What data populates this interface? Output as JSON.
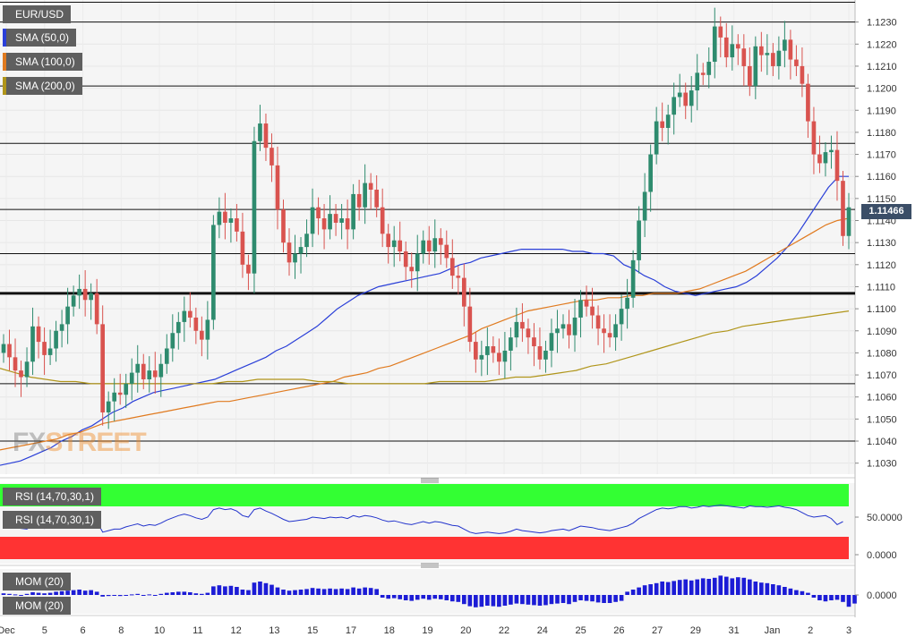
{
  "instrument": "EUR/USD",
  "price_tag": "1.11466",
  "watermark": {
    "part1": "FX",
    "part2": "STREET"
  },
  "indicators": {
    "sma50": {
      "label": "SMA (50,0)",
      "color": "#2a3fd8"
    },
    "sma100": {
      "label": "SMA (100,0)",
      "color": "#e07a1f"
    },
    "sma200": {
      "label": "SMA (200,0)",
      "color": "#b0951a"
    }
  },
  "rsi": {
    "label_top": "RSI (14,70,30,1)",
    "label_inner": "RSI (14,70,30,1)",
    "ticks": [
      "50.0000",
      "0.0000"
    ],
    "overbought_color": "#33ff33",
    "oversold_color": "#ff3333"
  },
  "mom": {
    "label_top": "MOM (20)",
    "label_inner": "MOM (20)",
    "ticks": [
      "0.0000"
    ],
    "color": "#1c1cd6"
  },
  "chart_data": {
    "type": "candlestick",
    "price_ylim": [
      1.1025,
      1.124
    ],
    "price_ticks": [
      "1.1030",
      "1.1040",
      "1.1050",
      "1.1060",
      "1.1070",
      "1.1080",
      "1.1090",
      "1.1100",
      "1.1110",
      "1.1120",
      "1.1130",
      "1.1140",
      "1.1150",
      "1.1160",
      "1.1170",
      "1.1180",
      "1.1190",
      "1.1200",
      "1.1210",
      "1.1220",
      "1.1230"
    ],
    "x_labels": [
      "Dec",
      "5",
      "6",
      "8",
      "10",
      "11",
      "12",
      "13",
      "15",
      "17",
      "18",
      "19",
      "20",
      "22",
      "24",
      "25",
      "26",
      "27",
      "29",
      "31",
      "Jan",
      "2",
      "3"
    ],
    "horizontal_levels": [
      1.1239,
      1.123,
      1.1201,
      1.1175,
      1.1145,
      1.1125,
      1.1107,
      1.1066,
      1.104
    ],
    "closes": [
      1.1084,
      1.1078,
      1.1072,
      1.1069,
      1.1076,
      1.1092,
      1.1085,
      1.1079,
      1.1082,
      1.109,
      1.1093,
      1.1101,
      1.1106,
      1.1109,
      1.1104,
      1.1107,
      1.1093,
      1.1053,
      1.1058,
      1.1062,
      1.1061,
      1.1066,
      1.1071,
      1.1075,
      1.1068,
      1.1072,
      1.1069,
      1.1075,
      1.1082,
      1.1089,
      1.1094,
      1.1099,
      1.1096,
      1.109,
      1.1086,
      1.1095,
      1.1138,
      1.1144,
      1.1139,
      1.1141,
      1.1135,
      1.112,
      1.1116,
      1.1176,
      1.1184,
      1.1173,
      1.1165,
      1.1145,
      1.113,
      1.1121,
      1.1125,
      1.1128,
      1.1134,
      1.1146,
      1.1141,
      1.1136,
      1.1143,
      1.1139,
      1.1141,
      1.1136,
      1.1152,
      1.1146,
      1.1157,
      1.1154,
      1.1146,
      1.1134,
      1.1128,
      1.1131,
      1.1126,
      1.1119,
      1.1117,
      1.1125,
      1.1131,
      1.1126,
      1.1132,
      1.1129,
      1.1123,
      1.1115,
      1.1114,
      1.1101,
      1.1085,
      1.1077,
      1.1079,
      1.1083,
      1.108,
      1.1076,
      1.1081,
      1.1087,
      1.1094,
      1.1091,
      1.1087,
      1.1083,
      1.1077,
      1.1081,
      1.1089,
      1.1091,
      1.1093,
      1.1088,
      1.1096,
      1.1104,
      1.1101,
      1.1097,
      1.1091,
      1.1089,
      1.1087,
      1.1093,
      1.11,
      1.1105,
      1.1122,
      1.114,
      1.1153,
      1.117,
      1.1185,
      1.1182,
      1.1188,
      1.1196,
      1.1198,
      1.1192,
      1.1199,
      1.1207,
      1.1206,
      1.1212,
      1.1228,
      1.1223,
      1.1214,
      1.122,
      1.1218,
      1.121,
      1.1201,
      1.1219,
      1.1215,
      1.1216,
      1.121,
      1.1217,
      1.1222,
      1.1213,
      1.121,
      1.1202,
      1.1185,
      1.117,
      1.1166,
      1.1171,
      1.1172,
      1.1158,
      1.1133,
      1.1146
    ],
    "sma50": [
      1.1029,
      1.103,
      1.1031,
      1.1033,
      1.1035,
      1.1037,
      1.104,
      1.1042,
      1.1045,
      1.1047,
      1.105,
      1.1053,
      1.1055,
      1.1058,
      1.106,
      1.1062,
      1.1063,
      1.1064,
      1.1065,
      1.1066,
      1.1067,
      1.1068,
      1.107,
      1.1072,
      1.1074,
      1.1076,
      1.1078,
      1.1081,
      1.1083,
      1.1086,
      1.1089,
      1.1092,
      1.1096,
      1.11,
      1.1103,
      1.1106,
      1.1108,
      1.111,
      1.1111,
      1.1112,
      1.1113,
      1.1114,
      1.1115,
      1.1116,
      1.1118,
      1.112,
      1.1121,
      1.1123,
      1.1124,
      1.1125,
      1.1126,
      1.1127,
      1.1127,
      1.1127,
      1.1127,
      1.1127,
      1.1126,
      1.1126,
      1.1125,
      1.1125,
      1.1124,
      1.112,
      1.1118,
      1.1115,
      1.1113,
      1.111,
      1.1108,
      1.1107,
      1.1106,
      1.1107,
      1.1108,
      1.1109,
      1.111,
      1.1112,
      1.1115,
      1.1119,
      1.1123,
      1.1128,
      1.1134,
      1.1141,
      1.1148,
      1.1155,
      1.116,
      1.116
    ],
    "sma100": [
      1.1036,
      1.1037,
      1.1038,
      1.1039,
      1.104,
      1.1041,
      1.1043,
      1.1044,
      1.1046,
      1.1048,
      1.1049,
      1.105,
      1.1051,
      1.1052,
      1.1053,
      1.1054,
      1.1055,
      1.1056,
      1.1057,
      1.1058,
      1.1058,
      1.1059,
      1.106,
      1.1061,
      1.1062,
      1.1063,
      1.1064,
      1.1065,
      1.1066,
      1.1067,
      1.1069,
      1.107,
      1.1071,
      1.1073,
      1.1074,
      1.1076,
      1.1078,
      1.108,
      1.1082,
      1.1084,
      1.1086,
      1.1088,
      1.1091,
      1.1093,
      1.1095,
      1.1097,
      1.1099,
      1.11,
      1.1101,
      1.1102,
      1.1103,
      1.1104,
      1.1104,
      1.1105,
      1.1105,
      1.1106,
      1.1106,
      1.1107,
      1.1107,
      1.1107,
      1.1108,
      1.1109,
      1.1111,
      1.1113,
      1.1115,
      1.1117,
      1.112,
      1.1123,
      1.1126,
      1.1129,
      1.1132,
      1.1135,
      1.1138,
      1.114,
      1.1141
    ],
    "sma200": [
      1.1073,
      1.1071,
      1.1069,
      1.1068,
      1.1067,
      1.1067,
      1.1066,
      1.1066,
      1.1066,
      1.1066,
      1.1066,
      1.1066,
      1.1066,
      1.1066,
      1.1066,
      1.1067,
      1.1067,
      1.1068,
      1.1068,
      1.1068,
      1.1068,
      1.1067,
      1.1067,
      1.1066,
      1.1066,
      1.1066,
      1.1066,
      1.1066,
      1.1066,
      1.1067,
      1.1067,
      1.1067,
      1.1067,
      1.1068,
      1.1069,
      1.1069,
      1.107,
      1.1071,
      1.1072,
      1.1074,
      1.1075,
      1.1077,
      1.1079,
      1.1081,
      1.1083,
      1.1085,
      1.1087,
      1.1089,
      1.109,
      1.1092,
      1.1093,
      1.1094,
      1.1095,
      1.1096,
      1.1097,
      1.1098,
      1.1099
    ],
    "rsi_values": [
      44,
      43,
      42,
      41,
      40,
      45,
      42,
      41,
      42,
      46,
      48,
      52,
      56,
      58,
      56,
      57,
      50,
      36,
      38,
      40,
      40,
      43,
      45,
      47,
      44,
      46,
      45,
      48,
      52,
      55,
      58,
      60,
      58,
      55,
      53,
      56,
      66,
      68,
      66,
      67,
      64,
      58,
      56,
      66,
      68,
      64,
      61,
      57,
      53,
      50,
      51,
      52,
      53,
      56,
      55,
      54,
      56,
      55,
      56,
      54,
      58,
      56,
      58,
      57,
      55,
      52,
      50,
      51,
      49,
      47,
      46,
      48,
      50,
      48,
      50,
      49,
      47,
      45,
      44,
      40,
      36,
      34,
      35,
      36,
      35,
      34,
      35,
      37,
      40,
      38,
      37,
      36,
      35,
      36,
      38,
      39,
      40,
      38,
      41,
      44,
      43,
      42,
      40,
      39,
      38,
      40,
      42,
      44,
      48,
      54,
      58,
      62,
      66,
      68,
      67,
      68,
      70,
      70,
      68,
      69,
      71,
      70,
      71,
      72,
      71,
      70,
      69,
      68,
      71,
      70,
      70,
      69,
      70,
      71,
      69,
      68,
      66,
      62,
      58,
      56,
      57,
      58,
      54,
      46,
      50
    ],
    "mom_values": [
      0.3,
      0.2,
      0.1,
      0,
      0.2,
      0.5,
      0.4,
      0.3,
      0.4,
      0.6,
      0.7,
      0.8,
      0.9,
      1,
      0.8,
      0.9,
      0.6,
      -0.3,
      -0.2,
      -0.1,
      -0.2,
      0,
      0.1,
      0.2,
      0,
      0.1,
      0,
      0.2,
      0.4,
      0.5,
      0.6,
      0.6,
      0.5,
      0.3,
      0.2,
      0.4,
      1.6,
      1.8,
      1.6,
      1.7,
      1.5,
      1,
      0.9,
      2.3,
      2.5,
      2.2,
      1.9,
      1.4,
      1,
      0.8,
      0.9,
      1,
      1.1,
      1.3,
      1.2,
      1.1,
      1.2,
      1.1,
      1.2,
      1.1,
      1.4,
      1.2,
      1.4,
      1.3,
      1.1,
      -0.5,
      -0.7,
      -0.6,
      -0.8,
      -1,
      -1.1,
      -0.9,
      -0.7,
      -0.9,
      -0.7,
      -0.8,
      -1,
      -1.2,
      -1.3,
      -1.7,
      -2.1,
      -2.3,
      -2.2,
      -2,
      -2.1,
      -2.2,
      -2,
      -1.8,
      -1.6,
      -1.7,
      -1.8,
      -1.9,
      -2,
      -1.9,
      -1.7,
      -1.6,
      -1.5,
      -1.7,
      -1.3,
      -1,
      -1.1,
      -1.2,
      -1.4,
      -1.5,
      -1.5,
      -1.3,
      -1.1,
      0.6,
      1,
      1.4,
      1.8,
      2,
      2.2,
      2.5,
      2.4,
      2.6,
      2.8,
      2.9,
      2.7,
      2.9,
      3.1,
      3,
      3.2,
      3.6,
      3.4,
      3.1,
      3.3,
      3.2,
      2.9,
      2.5,
      2.3,
      2.2,
      2,
      1.8,
      1.5,
      1.2,
      0.9,
      0.7,
      0.4,
      -0.5,
      -1,
      -1.2,
      -1,
      -0.9,
      -1.3,
      -2.2,
      -1.6
    ]
  }
}
